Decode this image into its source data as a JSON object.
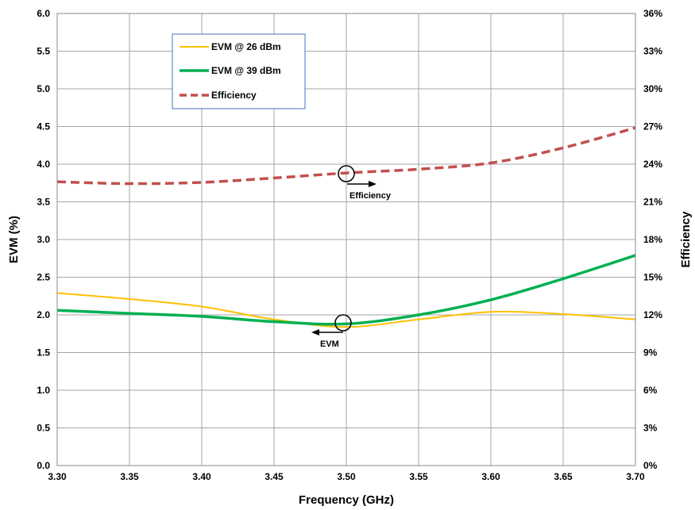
{
  "chart_data": {
    "type": "line",
    "xlabel": "Frequency (GHz)",
    "ylabel": "EVM (%)",
    "y2label": "Efficiency",
    "xlim": [
      3.3,
      3.7
    ],
    "ylim": [
      0,
      6.0
    ],
    "y2lim": [
      0,
      36
    ],
    "grid": true,
    "legend_position": "top-left",
    "x_ticks": [
      "3.30",
      "3.35",
      "3.40",
      "3.45",
      "3.50",
      "3.55",
      "3.60",
      "3.65",
      "3.70"
    ],
    "y_ticks": [
      "0.0",
      "0.5",
      "1.0",
      "1.5",
      "2.0",
      "2.5",
      "3.0",
      "3.5",
      "4.0",
      "4.5",
      "5.0",
      "5.5",
      "6.0"
    ],
    "y2_ticks": [
      "0%",
      "3%",
      "6%",
      "9%",
      "12%",
      "15%",
      "18%",
      "21%",
      "24%",
      "27%",
      "30%",
      "33%",
      "36%"
    ],
    "series": [
      {
        "name": "EVM @ 26 dBm",
        "axis": "left",
        "color": "#FFC000",
        "style": "solid",
        "x": [
          3.3,
          3.35,
          3.4,
          3.45,
          3.5,
          3.55,
          3.6,
          3.65,
          3.7
        ],
        "y": [
          2.29,
          2.21,
          2.11,
          1.94,
          1.84,
          1.94,
          2.04,
          2.01,
          1.94
        ]
      },
      {
        "name": "EVM @ 39 dBm",
        "axis": "left",
        "color": "#00B050",
        "style": "solid",
        "x": [
          3.3,
          3.35,
          3.4,
          3.45,
          3.5,
          3.55,
          3.6,
          3.65,
          3.7
        ],
        "y": [
          2.06,
          2.02,
          1.98,
          1.91,
          1.88,
          2.0,
          2.2,
          2.48,
          2.79
        ]
      },
      {
        "name": "Efficiency",
        "axis": "right",
        "color": "#C0504D",
        "style": "dashed",
        "x": [
          3.3,
          3.35,
          3.4,
          3.45,
          3.5,
          3.55,
          3.6,
          3.65,
          3.7
        ],
        "y": [
          22.6,
          22.45,
          22.55,
          22.9,
          23.3,
          23.6,
          24.1,
          25.3,
          26.9
        ]
      }
    ],
    "annotations": [
      {
        "text": "Efficiency",
        "target": "Efficiency",
        "x": 3.5,
        "y2": 23.2,
        "arrow": "right"
      },
      {
        "text": "EVM",
        "target": "EVM",
        "x": 3.5,
        "y": 1.89,
        "arrow": "left"
      }
    ]
  }
}
